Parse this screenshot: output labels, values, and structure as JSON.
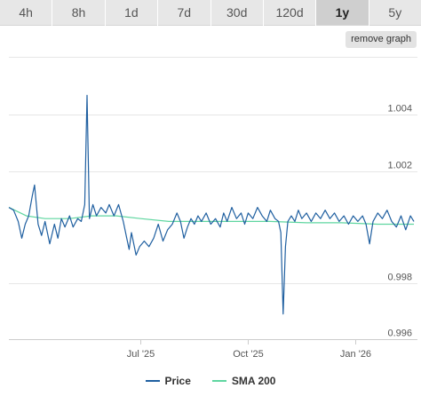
{
  "tabs": [
    {
      "label": "4h",
      "active": false
    },
    {
      "label": "8h",
      "active": false
    },
    {
      "label": "1d",
      "active": false
    },
    {
      "label": "7d",
      "active": false
    },
    {
      "label": "30d",
      "active": false
    },
    {
      "label": "120d",
      "active": false
    },
    {
      "label": "1y",
      "active": true
    },
    {
      "label": "5y",
      "active": false
    }
  ],
  "remove_graph_label": "remove graph",
  "legend": {
    "price_label": "Price",
    "sma_label": "SMA 200"
  },
  "colors": {
    "price": "#1f5fa0",
    "sma": "#5fd6a0",
    "grid": "#e6e6e6"
  },
  "chart_data": {
    "type": "line",
    "title": "",
    "xlabel": "",
    "ylabel": "",
    "ylim": [
      0.996,
      1.0055
    ],
    "x_range": [
      "2025-03-10",
      "2026-02-20"
    ],
    "y_ticks": [
      {
        "value": 0.996,
        "label": "0.996"
      },
      {
        "value": 0.998,
        "label": "0.998"
      },
      {
        "value": 1.002,
        "label": "1.002"
      },
      {
        "value": 1.004,
        "label": "1.004"
      }
    ],
    "x_ticks": [
      {
        "date": "2025-07-01",
        "label": "Jul '25"
      },
      {
        "date": "2025-10-01",
        "label": "Oct '25"
      },
      {
        "date": "2026-01-01",
        "label": "Jan '26"
      }
    ],
    "series": [
      {
        "name": "Price",
        "points": [
          [
            "2025-03-10",
            1.0007
          ],
          [
            "2025-03-14",
            1.0006
          ],
          [
            "2025-03-18",
            1.0002
          ],
          [
            "2025-03-21",
            0.9996
          ],
          [
            "2025-03-24",
            1.0001
          ],
          [
            "2025-03-27",
            1.0004
          ],
          [
            "2025-03-30",
            1.0011
          ],
          [
            "2025-04-01",
            1.0015
          ],
          [
            "2025-04-04",
            1.0001
          ],
          [
            "2025-04-07",
            0.9997
          ],
          [
            "2025-04-10",
            1.0002
          ],
          [
            "2025-04-14",
            0.9994
          ],
          [
            "2025-04-18",
            1.0001
          ],
          [
            "2025-04-21",
            0.9996
          ],
          [
            "2025-04-24",
            1.0003
          ],
          [
            "2025-04-27",
            1.0
          ],
          [
            "2025-05-01",
            1.0004
          ],
          [
            "2025-05-04",
            1.0
          ],
          [
            "2025-05-08",
            1.0003
          ],
          [
            "2025-05-11",
            1.0002
          ],
          [
            "2025-05-14",
            1.0008
          ],
          [
            "2025-05-16",
            1.0047
          ],
          [
            "2025-05-18",
            1.0003
          ],
          [
            "2025-05-21",
            1.0008
          ],
          [
            "2025-05-24",
            1.0004
          ],
          [
            "2025-05-28",
            1.0007
          ],
          [
            "2025-06-01",
            1.0005
          ],
          [
            "2025-06-04",
            1.0008
          ],
          [
            "2025-06-08",
            1.0004
          ],
          [
            "2025-06-12",
            1.0008
          ],
          [
            "2025-06-16",
            1.0002
          ],
          [
            "2025-06-19",
            0.9996
          ],
          [
            "2025-06-21",
            0.9992
          ],
          [
            "2025-06-23",
            0.9998
          ],
          [
            "2025-06-25",
            0.9994
          ],
          [
            "2025-06-27",
            0.999
          ],
          [
            "2025-06-30",
            0.9993
          ],
          [
            "2025-07-04",
            0.9995
          ],
          [
            "2025-07-08",
            0.9993
          ],
          [
            "2025-07-12",
            0.9996
          ],
          [
            "2025-07-16",
            1.0001
          ],
          [
            "2025-07-20",
            0.9995
          ],
          [
            "2025-07-24",
            0.9999
          ],
          [
            "2025-07-28",
            1.0001
          ],
          [
            "2025-08-01",
            1.0005
          ],
          [
            "2025-08-04",
            1.0002
          ],
          [
            "2025-08-07",
            0.9996
          ],
          [
            "2025-08-10",
            1.0
          ],
          [
            "2025-08-13",
            1.0003
          ],
          [
            "2025-08-16",
            1.0001
          ],
          [
            "2025-08-19",
            1.0004
          ],
          [
            "2025-08-22",
            1.0002
          ],
          [
            "2025-08-26",
            1.0005
          ],
          [
            "2025-08-30",
            1.0001
          ],
          [
            "2025-09-03",
            1.0003
          ],
          [
            "2025-09-07",
            1.0
          ],
          [
            "2025-09-10",
            1.0005
          ],
          [
            "2025-09-13",
            1.0002
          ],
          [
            "2025-09-17",
            1.0007
          ],
          [
            "2025-09-21",
            1.0003
          ],
          [
            "2025-09-25",
            1.0005
          ],
          [
            "2025-09-28",
            1.0001
          ],
          [
            "2025-10-01",
            1.0005
          ],
          [
            "2025-10-05",
            1.0003
          ],
          [
            "2025-10-09",
            1.0007
          ],
          [
            "2025-10-13",
            1.0004
          ],
          [
            "2025-10-17",
            1.0002
          ],
          [
            "2025-10-20",
            1.0006
          ],
          [
            "2025-10-24",
            1.0003
          ],
          [
            "2025-10-27",
            1.0002
          ],
          [
            "2025-10-29",
            0.9998
          ],
          [
            "2025-10-31",
            0.9969
          ],
          [
            "2025-11-02",
            0.9993
          ],
          [
            "2025-11-04",
            1.0002
          ],
          [
            "2025-11-07",
            1.0004
          ],
          [
            "2025-11-10",
            1.0002
          ],
          [
            "2025-11-13",
            1.0006
          ],
          [
            "2025-11-16",
            1.0003
          ],
          [
            "2025-11-20",
            1.0005
          ],
          [
            "2025-11-24",
            1.0002
          ],
          [
            "2025-11-28",
            1.0005
          ],
          [
            "2025-12-02",
            1.0003
          ],
          [
            "2025-12-06",
            1.0006
          ],
          [
            "2025-12-10",
            1.0003
          ],
          [
            "2025-12-14",
            1.0005
          ],
          [
            "2025-12-18",
            1.0002
          ],
          [
            "2025-12-22",
            1.0004
          ],
          [
            "2025-12-26",
            1.0001
          ],
          [
            "2025-12-30",
            1.0004
          ],
          [
            "2026-01-03",
            1.0002
          ],
          [
            "2026-01-07",
            1.0004
          ],
          [
            "2026-01-10",
            1.0001
          ],
          [
            "2026-01-13",
            0.9994
          ],
          [
            "2026-01-16",
            1.0002
          ],
          [
            "2026-01-20",
            1.0005
          ],
          [
            "2026-01-24",
            1.0003
          ],
          [
            "2026-01-28",
            1.0006
          ],
          [
            "2026-02-01",
            1.0002
          ],
          [
            "2026-02-05",
            1.0
          ],
          [
            "2026-02-09",
            1.0004
          ],
          [
            "2026-02-13",
            0.9999
          ],
          [
            "2026-02-17",
            1.0004
          ],
          [
            "2026-02-20",
            1.0002
          ]
        ]
      },
      {
        "name": "SMA 200",
        "points": [
          [
            "2025-03-10",
            1.0007
          ],
          [
            "2025-03-25",
            1.0004
          ],
          [
            "2025-04-10",
            1.0003
          ],
          [
            "2025-05-01",
            1.0003
          ],
          [
            "2025-05-20",
            1.0004
          ],
          [
            "2025-06-10",
            1.0004
          ],
          [
            "2025-07-01",
            1.0003
          ],
          [
            "2025-07-25",
            1.0002
          ],
          [
            "2025-08-20",
            1.0002
          ],
          [
            "2025-09-20",
            1.0002
          ],
          [
            "2025-10-20",
            1.0002
          ],
          [
            "2025-11-20",
            1.00015
          ],
          [
            "2025-12-20",
            1.00015
          ],
          [
            "2026-01-20",
            1.0001
          ],
          [
            "2026-02-20",
            1.0001
          ]
        ]
      }
    ]
  }
}
